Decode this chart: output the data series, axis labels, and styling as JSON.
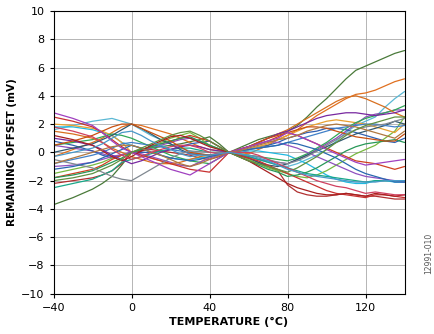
{
  "xlabel": "TEMPERATURE (°C)",
  "ylabel": "REMAINING OFFSET (mV)",
  "xlim": [
    -40,
    140
  ],
  "ylim": [
    -10,
    10
  ],
  "xticks": [
    -40,
    0,
    40,
    80,
    120
  ],
  "yticks": [
    -10,
    -8,
    -6,
    -4,
    -2,
    0,
    2,
    4,
    6,
    8,
    10
  ],
  "annotation": "12991-010",
  "x_temps": [
    -40,
    -30,
    -20,
    -15,
    -10,
    -5,
    0,
    5,
    10,
    15,
    20,
    25,
    30,
    35,
    40,
    45,
    50,
    55,
    60,
    65,
    70,
    75,
    80,
    85,
    90,
    95,
    100,
    105,
    110,
    115,
    120,
    125,
    130,
    135,
    140
  ],
  "curves": [
    {
      "color": "#4a7a3a",
      "data": [
        -3.7,
        -3.2,
        -2.6,
        -2.2,
        -1.7,
        -0.9,
        0.0,
        0.15,
        0.3,
        0.4,
        0.5,
        0.6,
        0.75,
        0.9,
        1.1,
        0.6,
        0.0,
        0.3,
        0.6,
        0.9,
        1.1,
        1.3,
        1.5,
        1.9,
        2.5,
        3.2,
        3.8,
        4.5,
        5.2,
        5.8,
        6.1,
        6.4,
        6.7,
        7.0,
        7.2
      ]
    },
    {
      "color": "#e07020",
      "data": [
        -0.3,
        0.2,
        0.7,
        1.0,
        1.4,
        1.8,
        2.0,
        1.9,
        1.7,
        1.5,
        1.3,
        1.0,
        0.7,
        0.4,
        0.2,
        0.1,
        0.0,
        0.0,
        -0.1,
        0.2,
        0.5,
        0.9,
        1.2,
        1.6,
        2.1,
        2.6,
        3.0,
        3.4,
        3.8,
        4.1,
        4.2,
        4.4,
        4.7,
        5.0,
        5.2
      ]
    },
    {
      "color": "#5bb8d4",
      "data": [
        1.6,
        1.9,
        2.2,
        2.3,
        2.4,
        2.2,
        2.0,
        1.6,
        1.2,
        0.9,
        0.6,
        0.3,
        0.1,
        -0.1,
        -0.2,
        -0.1,
        0.0,
        -0.1,
        -0.3,
        -0.5,
        -0.7,
        -0.9,
        -1.0,
        -0.8,
        -0.5,
        -0.2,
        0.2,
        0.8,
        1.4,
        1.9,
        2.2,
        2.5,
        3.2,
        3.8,
        4.3
      ]
    },
    {
      "color": "#8b4cb8",
      "data": [
        0.5,
        0.3,
        0.1,
        -0.1,
        -0.3,
        -0.2,
        0.0,
        0.1,
        0.3,
        0.5,
        0.7,
        0.9,
        1.0,
        0.8,
        0.5,
        0.2,
        0.0,
        -0.1,
        -0.3,
        -0.5,
        -0.6,
        -0.7,
        -0.8,
        -0.5,
        -0.2,
        0.2,
        0.6,
        1.0,
        1.5,
        2.0,
        2.5,
        2.7,
        2.8,
        3.0,
        3.0
      ]
    },
    {
      "color": "#b03030",
      "data": [
        -2.2,
        -2.0,
        -1.8,
        -1.6,
        -1.3,
        -0.8,
        0.0,
        0.1,
        0.2,
        0.1,
        0.0,
        -0.1,
        -0.2,
        -0.4,
        -0.5,
        -0.3,
        0.0,
        -0.2,
        -0.4,
        -0.7,
        -1.0,
        -1.3,
        -2.3,
        -2.8,
        -3.0,
        -3.1,
        -3.1,
        -3.0,
        -2.9,
        -3.0,
        -3.1,
        -3.1,
        -3.2,
        -3.3,
        -3.3
      ]
    },
    {
      "color": "#20b8e0",
      "data": [
        1.8,
        1.8,
        1.6,
        1.4,
        1.2,
        0.7,
        0.5,
        0.3,
        0.0,
        -0.2,
        -0.4,
        -0.5,
        -0.5,
        -0.4,
        -0.3,
        -0.15,
        0.0,
        0.0,
        0.1,
        0.1,
        0.0,
        -0.1,
        -0.2,
        -0.5,
        -0.8,
        -1.2,
        -1.6,
        -1.9,
        -2.1,
        -2.2,
        -2.2,
        -2.0,
        -2.0,
        -2.1,
        -2.1
      ]
    },
    {
      "color": "#3060b0",
      "data": [
        0.8,
        0.5,
        0.1,
        -0.2,
        -0.4,
        -0.2,
        0.0,
        0.0,
        0.0,
        0.1,
        0.2,
        0.4,
        0.6,
        0.7,
        0.8,
        0.4,
        0.0,
        0.1,
        0.2,
        0.4,
        0.5,
        0.7,
        1.0,
        1.2,
        1.4,
        1.5,
        1.7,
        1.7,
        1.6,
        1.4,
        1.2,
        1.0,
        0.8,
        0.7,
        1.0
      ]
    },
    {
      "color": "#78b840",
      "data": [
        -1.5,
        -1.2,
        -0.9,
        -0.7,
        -0.4,
        -0.2,
        0.0,
        0.2,
        0.4,
        0.7,
        1.0,
        1.2,
        1.4,
        1.0,
        0.5,
        0.25,
        0.0,
        -0.2,
        -0.5,
        -0.8,
        -1.1,
        -1.3,
        -1.5,
        -1.7,
        -1.8,
        -1.6,
        -1.3,
        -0.9,
        -0.5,
        -0.1,
        0.2,
        0.5,
        1.0,
        1.5,
        2.5
      ]
    },
    {
      "color": "#e8a030",
      "data": [
        2.0,
        1.9,
        1.7,
        1.5,
        1.2,
        0.7,
        0.0,
        -0.2,
        -0.4,
        -0.6,
        -0.8,
        -0.9,
        -1.0,
        -0.7,
        -0.3,
        -0.15,
        0.0,
        0.1,
        0.2,
        0.4,
        0.6,
        0.9,
        1.2,
        1.5,
        1.8,
        2.0,
        2.2,
        2.3,
        2.2,
        2.1,
        2.0,
        1.8,
        1.6,
        1.4,
        2.0
      ]
    },
    {
      "color": "#d04020",
      "data": [
        -1.8,
        -1.5,
        -1.2,
        -0.9,
        -0.5,
        -0.2,
        0.0,
        0.2,
        0.4,
        0.6,
        0.8,
        1.0,
        1.2,
        1.0,
        0.8,
        0.4,
        0.0,
        0.2,
        0.4,
        0.6,
        0.8,
        1.1,
        1.4,
        1.2,
        0.9,
        0.6,
        0.3,
        0.0,
        -0.3,
        -0.6,
        -0.7,
        -0.8,
        -1.0,
        -1.2,
        -1.0
      ]
    },
    {
      "color": "#30a858",
      "data": [
        0.5,
        0.7,
        0.9,
        1.1,
        1.3,
        1.2,
        1.0,
        0.7,
        0.4,
        0.1,
        -0.2,
        -0.4,
        -0.6,
        -0.7,
        -0.8,
        -0.4,
        0.0,
        -0.1,
        -0.2,
        -0.3,
        -0.4,
        -0.5,
        -0.6,
        -0.4,
        -0.1,
        0.3,
        0.7,
        1.2,
        1.7,
        2.1,
        2.4,
        2.6,
        2.8,
        3.0,
        3.3
      ]
    },
    {
      "color": "#9050c0",
      "data": [
        -1.0,
        -0.9,
        -0.7,
        -0.5,
        -0.3,
        -0.15,
        0.0,
        -0.1,
        -0.3,
        -0.5,
        -0.7,
        -0.9,
        -1.0,
        -0.7,
        -0.4,
        -0.2,
        0.0,
        0.2,
        0.4,
        0.6,
        0.8,
        0.7,
        0.5,
        0.3,
        0.0,
        -0.3,
        -0.6,
        -0.9,
        -1.2,
        -1.5,
        -1.7,
        -1.8,
        -1.9,
        -2.0,
        -2.1
      ]
    },
    {
      "color": "#d87020",
      "data": [
        1.5,
        1.3,
        1.0,
        0.7,
        0.3,
        0.0,
        -0.3,
        -0.5,
        -0.7,
        -0.8,
        -0.8,
        -0.7,
        -0.5,
        -0.3,
        -0.2,
        -0.1,
        0.0,
        0.2,
        0.4,
        0.7,
        1.0,
        1.3,
        1.6,
        2.0,
        2.4,
        2.8,
        3.2,
        3.6,
        3.9,
        4.0,
        3.8,
        3.5,
        3.2,
        2.8,
        2.5
      ]
    },
    {
      "color": "#18a888",
      "data": [
        -2.5,
        -2.2,
        -1.9,
        -1.6,
        -1.3,
        -0.7,
        -0.5,
        -0.3,
        -0.1,
        0.1,
        0.2,
        0.3,
        0.3,
        0.15,
        0.0,
        0.0,
        0.0,
        -0.1,
        -0.3,
        -0.5,
        -0.7,
        -0.9,
        -1.1,
        -1.3,
        -1.5,
        -1.6,
        -1.7,
        -1.8,
        -1.9,
        -2.0,
        -2.1,
        -2.0,
        -2.0,
        -2.0,
        -2.0
      ]
    },
    {
      "color": "#305870",
      "data": [
        0.0,
        0.3,
        0.6,
        0.9,
        1.2,
        1.6,
        2.0,
        1.7,
        1.3,
        0.9,
        0.6,
        0.2,
        -0.1,
        -0.15,
        -0.2,
        -0.1,
        0.0,
        -0.2,
        -0.4,
        -0.7,
        -0.9,
        -1.0,
        -0.8,
        -0.5,
        -0.2,
        0.1,
        0.4,
        0.7,
        1.0,
        1.3,
        1.5,
        1.7,
        1.9,
        2.2,
        2.0
      ]
    },
    {
      "color": "#c83030",
      "data": [
        2.5,
        2.2,
        1.8,
        1.4,
        0.9,
        0.4,
        0.0,
        -0.2,
        -0.4,
        -0.6,
        -0.8,
        -1.0,
        -1.2,
        -1.3,
        -1.4,
        -0.7,
        0.0,
        -0.2,
        -0.4,
        -0.6,
        -0.9,
        -1.2,
        -1.5,
        -1.8,
        -2.1,
        -2.4,
        -2.7,
        -2.9,
        -3.0,
        -3.1,
        -3.2,
        -3.0,
        -3.0,
        -3.1,
        -3.2
      ]
    },
    {
      "color": "#4080c8",
      "data": [
        -0.8,
        -0.5,
        -0.2,
        0.0,
        0.3,
        0.6,
        0.7,
        0.6,
        0.5,
        0.4,
        0.2,
        0.1,
        -0.1,
        -0.15,
        -0.2,
        -0.1,
        0.0,
        0.1,
        0.2,
        0.3,
        0.4,
        0.5,
        0.7,
        0.9,
        1.1,
        1.3,
        1.5,
        1.7,
        1.8,
        1.9,
        2.0,
        2.0,
        1.9,
        1.8,
        1.9
      ]
    },
    {
      "color": "#7828a0",
      "data": [
        1.0,
        0.8,
        0.5,
        0.2,
        -0.2,
        -0.5,
        -0.8,
        -0.6,
        -0.3,
        0.0,
        0.2,
        0.4,
        0.5,
        0.4,
        0.2,
        0.1,
        0.0,
        0.2,
        0.4,
        0.7,
        1.0,
        1.3,
        1.5,
        1.8,
        2.1,
        2.4,
        2.6,
        2.7,
        2.8,
        2.8,
        2.7,
        2.6,
        2.7,
        2.8,
        3.0
      ]
    },
    {
      "color": "#289858",
      "data": [
        -1.8,
        -1.6,
        -1.3,
        -1.0,
        -0.7,
        -0.4,
        0.0,
        0.2,
        0.4,
        0.6,
        0.8,
        1.0,
        1.1,
        0.8,
        0.5,
        0.25,
        0.0,
        -0.3,
        -0.6,
        -0.9,
        -1.2,
        -1.4,
        -1.7,
        -1.6,
        -1.4,
        -1.1,
        -0.7,
        -0.3,
        0.1,
        0.4,
        0.6,
        0.7,
        0.8,
        0.9,
        0.7
      ]
    },
    {
      "color": "#c85010",
      "data": [
        0.5,
        0.8,
        1.2,
        1.5,
        1.8,
        2.0,
        2.0,
        1.7,
        1.4,
        1.1,
        0.8,
        0.4,
        0.0,
        -0.1,
        -0.2,
        -0.1,
        0.0,
        0.2,
        0.4,
        0.7,
        1.0,
        1.2,
        1.4,
        1.6,
        1.8,
        1.8,
        1.7,
        1.5,
        1.3,
        1.1,
        1.0,
        0.9,
        0.8,
        0.8,
        1.3
      ]
    },
    {
      "color": "#808890",
      "data": [
        -0.5,
        -0.8,
        -1.1,
        -1.4,
        -1.7,
        -1.9,
        -2.0,
        -1.6,
        -1.2,
        -0.8,
        -0.4,
        -0.1,
        0.1,
        0.05,
        0.0,
        0.0,
        0.0,
        -0.1,
        -0.2,
        -0.3,
        -0.5,
        -0.7,
        -0.8,
        -0.6,
        -0.3,
        0.1,
        0.5,
        0.9,
        1.3,
        1.6,
        1.8,
        1.9,
        2.0,
        2.2,
        2.4
      ]
    },
    {
      "color": "#a82020",
      "data": [
        1.2,
        0.9,
        0.5,
        0.1,
        -0.3,
        -0.6,
        -0.3,
        0.1,
        0.5,
        0.8,
        1.1,
        1.2,
        1.0,
        0.7,
        0.4,
        0.2,
        0.0,
        -0.3,
        -0.6,
        -1.0,
        -1.4,
        -1.8,
        -2.2,
        -2.5,
        -2.7,
        -2.9,
        -3.0,
        -3.0,
        -2.9,
        -3.0,
        -3.1,
        -2.9,
        -3.0,
        -3.1,
        -3.0
      ]
    },
    {
      "color": "#2868b0",
      "data": [
        -1.2,
        -1.0,
        -0.7,
        -0.4,
        -0.1,
        0.2,
        0.5,
        0.3,
        0.0,
        -0.2,
        -0.4,
        -0.5,
        -0.6,
        -0.5,
        -0.3,
        -0.15,
        0.0,
        0.1,
        0.2,
        0.3,
        0.4,
        0.5,
        0.7,
        0.6,
        0.4,
        0.2,
        -0.1,
        -0.4,
        -0.8,
        -1.2,
        -1.5,
        -1.7,
        -1.9,
        -2.1,
        -2.1
      ]
    },
    {
      "color": "#a040c0",
      "data": [
        2.8,
        2.4,
        1.9,
        1.4,
        0.8,
        0.3,
        0.0,
        -0.3,
        -0.6,
        -0.9,
        -1.2,
        -1.4,
        -1.6,
        -1.2,
        -0.8,
        -0.4,
        0.0,
        0.2,
        0.4,
        0.6,
        0.8,
        1.0,
        1.4,
        1.2,
        0.9,
        0.6,
        0.2,
        -0.1,
        -0.4,
        -0.7,
        -0.9,
        -0.8,
        -0.7,
        -0.6,
        -0.5
      ]
    },
    {
      "color": "#b07840",
      "data": [
        -0.8,
        -0.4,
        0.0,
        0.2,
        0.4,
        0.5,
        0.5,
        0.3,
        0.0,
        -0.2,
        -0.5,
        -0.8,
        -1.0,
        -0.8,
        -0.5,
        -0.25,
        0.0,
        0.1,
        0.3,
        0.5,
        0.7,
        0.9,
        1.0,
        1.2,
        1.5,
        1.7,
        1.9,
        2.0,
        1.9,
        1.8,
        1.6,
        1.4,
        1.2,
        1.0,
        1.5
      ]
    },
    {
      "color": "#609040",
      "data": [
        -2.0,
        -1.8,
        -1.5,
        -1.2,
        -0.9,
        -0.5,
        0.0,
        0.3,
        0.6,
        0.9,
        1.2,
        1.4,
        1.5,
        1.2,
        0.8,
        0.4,
        0.0,
        -0.3,
        -0.6,
        -0.8,
        -1.0,
        -1.2,
        -1.4,
        -1.1,
        -0.7,
        -0.3,
        0.2,
        0.7,
        1.2,
        1.6,
        1.9,
        2.1,
        2.3,
        2.5,
        2.5
      ]
    },
    {
      "color": "#d04060",
      "data": [
        1.8,
        1.5,
        1.1,
        0.7,
        0.2,
        -0.2,
        -0.5,
        -0.3,
        0.0,
        0.2,
        0.4,
        0.5,
        0.5,
        0.3,
        0.0,
        -0.1,
        0.0,
        0.0,
        0.0,
        -0.2,
        -0.5,
        -0.8,
        -1.1,
        -1.4,
        -1.7,
        -2.0,
        -2.2,
        -2.4,
        -2.5,
        -2.7,
        -2.9,
        -2.8,
        -2.9,
        -3.0,
        -3.0
      ]
    },
    {
      "color": "#4898c8",
      "data": [
        -0.3,
        0.0,
        0.3,
        0.6,
        1.0,
        1.4,
        1.5,
        1.2,
        0.8,
        0.5,
        0.2,
        -0.1,
        -0.3,
        -0.2,
        -0.2,
        -0.1,
        0.0,
        -0.1,
        -0.2,
        -0.4,
        -0.6,
        -0.9,
        -1.2,
        -1.4,
        -1.6,
        -1.7,
        -1.8,
        -1.9,
        -2.0,
        -2.1,
        -2.1,
        -2.1,
        -2.0,
        -2.0,
        -2.0
      ]
    }
  ]
}
